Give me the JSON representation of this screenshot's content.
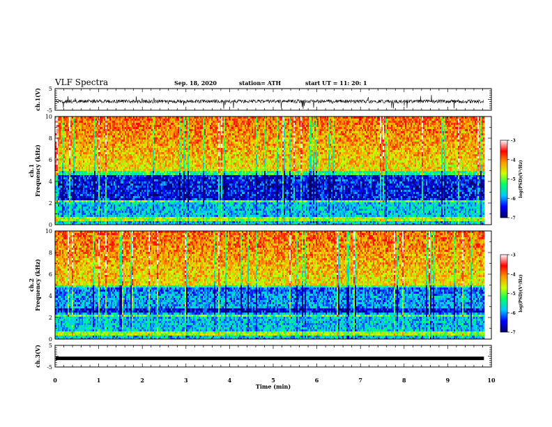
{
  "header": {
    "title": "VLF Spectra",
    "date": "Sep. 18, 2020",
    "station": "station= ATH",
    "start": "start  UT =   11: 20: 1"
  },
  "colorbar": {
    "label": "log(PSD)(V²/Hz)",
    "ticks": [
      -3,
      -4,
      -5,
      -6,
      -7
    ],
    "colormap": [
      "#000066",
      "#0000ff",
      "#00c8ff",
      "#00ff66",
      "#ccff00",
      "#ff9900",
      "#ff0000",
      "#ffffff"
    ]
  },
  "chart_data": [
    {
      "type": "line",
      "ylabel": "ch.1(V)",
      "ylim": [
        -5,
        5
      ],
      "yticks": [
        5,
        -5
      ],
      "xlim": [
        0,
        10
      ],
      "trace_color": "#000000"
    },
    {
      "type": "heatmap",
      "ylabel": "ch.1\nFrequency (kHz)",
      "ylim": [
        0,
        10
      ],
      "yticks": [
        0,
        2,
        4,
        6,
        8,
        10
      ],
      "xlim": [
        0,
        10
      ],
      "data_end_min": 9.83,
      "zlim": [
        -7,
        -3
      ],
      "zlabel": "log(PSD)(V²/Hz)"
    },
    {
      "type": "heatmap",
      "ylabel": "ch.2\nFrequency (kHz)",
      "ylim": [
        0,
        10
      ],
      "yticks": [
        0,
        2,
        4,
        6,
        8,
        10
      ],
      "xlim": [
        0,
        10
      ],
      "data_end_min": 9.83,
      "zlim": [
        -7,
        -3
      ],
      "zlabel": "log(PSD)(V²/Hz)"
    },
    {
      "type": "line",
      "ylabel": "ch.3(V)",
      "ylim": [
        -5,
        5
      ],
      "yticks": [
        5,
        -5
      ],
      "xlim": [
        0,
        10
      ],
      "xticks": [
        0,
        1,
        2,
        3,
        4,
        5,
        6,
        7,
        8,
        9,
        10
      ],
      "xlabel": "Time (min)",
      "constant_value": -1,
      "data_end_min": 9.83
    }
  ]
}
